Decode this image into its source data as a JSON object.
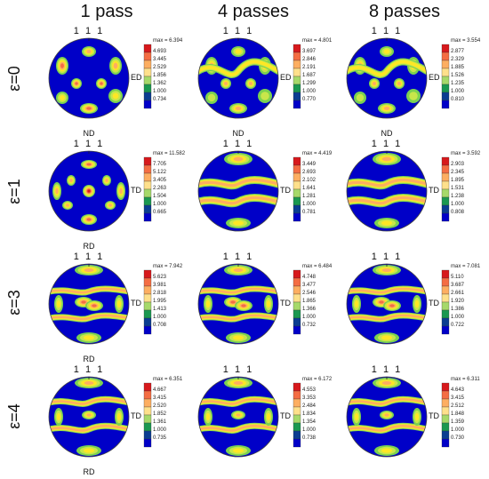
{
  "columns": [
    "1 pass",
    "4 passes",
    "8 passes"
  ],
  "rows": [
    {
      "label": "ε=0",
      "bottom": "ND",
      "side": "ED",
      "figures": [
        {
          "max": "max = 6.394",
          "ticks": [
            "4.693",
            "3.445",
            "2.529",
            "1.856",
            "1.362",
            "1.000",
            "0.734"
          ]
        },
        {
          "max": "max = 4.801",
          "ticks": [
            "3.697",
            "2.846",
            "2.191",
            "1.687",
            "1.299",
            "1.000",
            "0.770"
          ]
        },
        {
          "max": "max = 3.554",
          "ticks": [
            "2.877",
            "2.329",
            "1.885",
            "1.526",
            "1.235",
            "1.000",
            "0.810"
          ]
        }
      ]
    },
    {
      "label": "ε=1",
      "bottom": "RD",
      "side": "TD",
      "figures": [
        {
          "max": "max = 11.582",
          "ticks": [
            "7.705",
            "5.122",
            "3.405",
            "2.263",
            "1.504",
            "1.000",
            "0.665"
          ]
        },
        {
          "max": "max = 4.419",
          "ticks": [
            "3.449",
            "2.693",
            "2.102",
            "1.641",
            "1.281",
            "1.000",
            "0.781"
          ]
        },
        {
          "max": "max = 3.592",
          "ticks": [
            "2.903",
            "2.345",
            "1.895",
            "1.531",
            "1.238",
            "1.000",
            "0.808"
          ]
        }
      ]
    },
    {
      "label": "ε=3",
      "bottom": "RD",
      "side": "TD",
      "figures": [
        {
          "max": "max = 7.942",
          "ticks": [
            "5.623",
            "3.981",
            "2.818",
            "1.995",
            "1.413",
            "1.000",
            "0.708"
          ]
        },
        {
          "max": "max = 6.484",
          "ticks": [
            "4.748",
            "3.477",
            "2.546",
            "1.865",
            "1.366",
            "1.000",
            "0.732"
          ]
        },
        {
          "max": "max = 7.081",
          "ticks": [
            "5.110",
            "3.687",
            "2.661",
            "1.920",
            "1.386",
            "1.000",
            "0.722"
          ]
        }
      ]
    },
    {
      "label": "ε=4",
      "bottom": "RD",
      "side": "TD",
      "figures": [
        {
          "max": "max = 6.351",
          "ticks": [
            "4.667",
            "3.415",
            "2.520",
            "1.852",
            "1.361",
            "1.000",
            "0.735"
          ]
        },
        {
          "max": "max = 6.172",
          "ticks": [
            "4.553",
            "3.353",
            "2.484",
            "1.834",
            "1.354",
            "1.000",
            "0.738"
          ]
        },
        {
          "max": "max = 6.311",
          "ticks": [
            "4.643",
            "3.415",
            "2.512",
            "1.848",
            "1.359",
            "1.000",
            "0.730"
          ]
        }
      ]
    }
  ],
  "pole_label": "1 1 1",
  "colors": {
    "scale": [
      "#d7191c",
      "#f46d43",
      "#fdae61",
      "#fee08b",
      "#a6d96a",
      "#1a9850",
      "#0b3d91",
      "#0000c8"
    ],
    "background": "#0000c8"
  }
}
